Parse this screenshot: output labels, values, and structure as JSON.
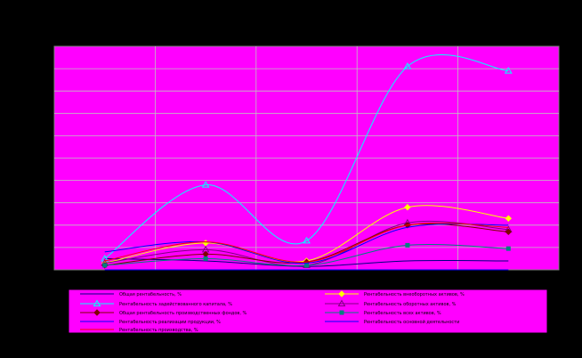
{
  "colors": {
    "background": "#000000",
    "plot_area": "#FF00FF",
    "grid": "#C0C0C0",
    "legend_bg": "#FF00FF"
  },
  "chart_data": {
    "type": "line",
    "title": "",
    "xlabel": "",
    "ylabel": "",
    "x": [
      1,
      2,
      3,
      4,
      5
    ],
    "ylim": [
      0,
      100
    ],
    "grid": true,
    "smooth": true,
    "legend_position": "bottom",
    "series": [
      {
        "name": "Общая рентабельность, %",
        "color": "#000080",
        "marker": "none",
        "values": [
          5,
          4,
          1.5,
          4,
          4
        ]
      },
      {
        "name": "Рентабельность внеоборотных активов, %",
        "color": "#FFFF00",
        "marker": "diamond",
        "values": [
          3,
          12,
          4,
          28,
          23
        ]
      },
      {
        "name": "Рентабельность задействованного капитала, %",
        "color": "#00FFFF",
        "marker": "triangle",
        "values": [
          5,
          38,
          13,
          91,
          89
        ]
      },
      {
        "name": "Рентабельность оборотных активов, %",
        "color": "#800080",
        "marker": "triangle",
        "values": [
          3,
          9,
          2,
          21,
          18
        ]
      },
      {
        "name": "Общая рентабельность производственных фондов, %",
        "color": "#800000",
        "marker": "diamond",
        "values": [
          2,
          7,
          3.5,
          20,
          17
        ]
      },
      {
        "name": "Рентабельность всех активов, %",
        "color": "#008080",
        "marker": "square",
        "values": [
          2,
          5,
          2,
          11,
          9.5
        ]
      },
      {
        "name": "Рентабельность реализации продукции, %",
        "color": "#0000FF",
        "marker": "none",
        "values": [
          8,
          12.5,
          3,
          19,
          20
        ]
      },
      {
        "name": "Рентабельность основной деятельности",
        "color": "#0000FF",
        "marker": "none",
        "values": [
          0,
          0,
          0,
          0,
          0
        ]
      },
      {
        "name": "Рентабельность производства, %",
        "color": "#FF0000",
        "marker": "none",
        "values": [
          4,
          12.5,
          3.5,
          20,
          19
        ]
      }
    ]
  }
}
